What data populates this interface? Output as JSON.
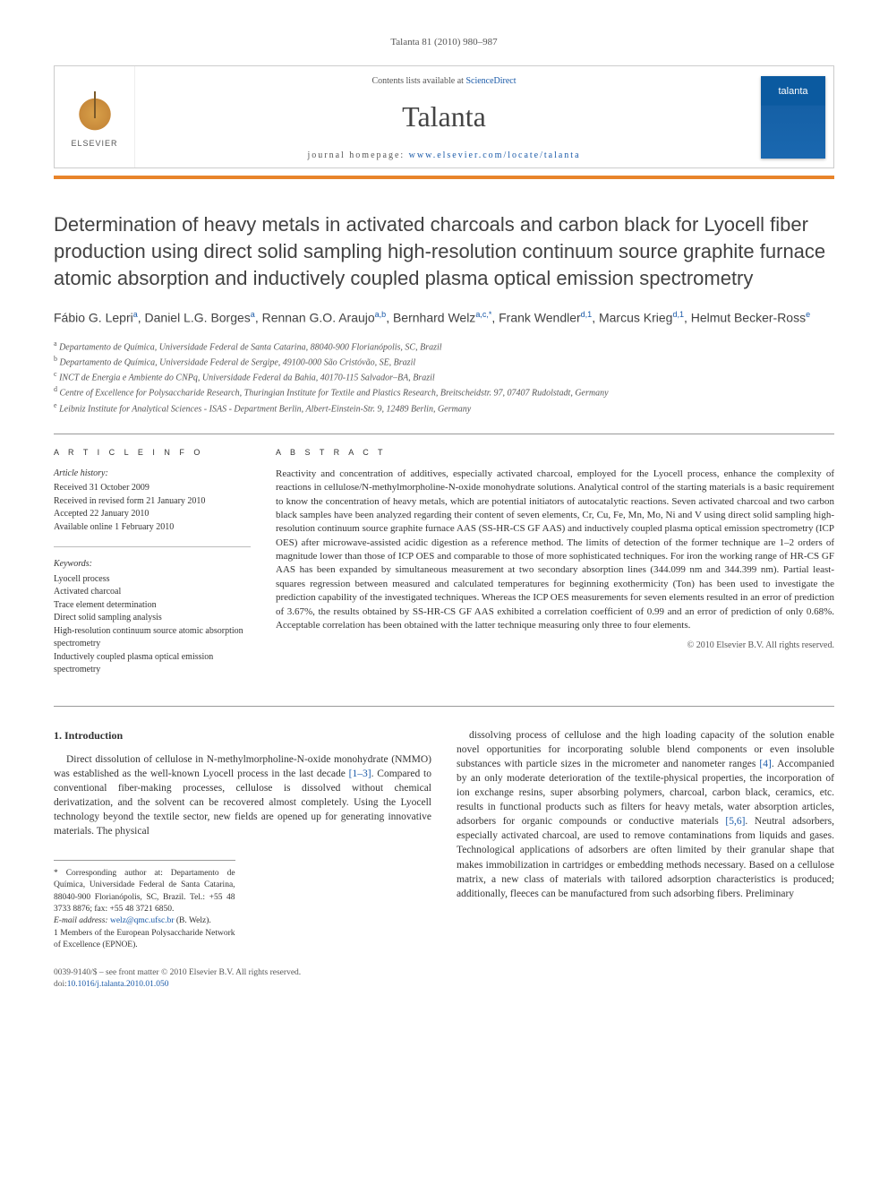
{
  "running_head": "Talanta 81 (2010) 980–987",
  "masthead": {
    "publisher_label": "ELSEVIER",
    "contents_prefix": "Contents lists available at ",
    "contents_link": "ScienceDirect",
    "journal": "Talanta",
    "homepage_prefix": "journal homepage: ",
    "homepage_link": "www.elsevier.com/locate/talanta",
    "cover_label": "talanta"
  },
  "title": "Determination of heavy metals in activated charcoals and carbon black for Lyocell fiber production using direct solid sampling high-resolution continuum source graphite furnace atomic absorption and inductively coupled plasma optical emission spectrometry",
  "authors_html": "Fábio G. Lepri<sup>a</sup>, Daniel L.G. Borges<sup>a</sup>, Rennan G.O. Araujo<sup>a,b</sup>, Bernhard Welz<sup>a,c,*</sup>, Frank Wendler<sup>d,1</sup>, Marcus Krieg<sup>d,1</sup>, Helmut Becker-Ross<sup>e</sup>",
  "affiliations": [
    "a Departamento de Química, Universidade Federal de Santa Catarina, 88040-900 Florianópolis, SC, Brazil",
    "b Departamento de Química, Universidade Federal de Sergipe, 49100-000 São Cristóvão, SE, Brazil",
    "c INCT de Energia e Ambiente do CNPq, Universidade Federal da Bahia, 40170-115 Salvador–BA, Brazil",
    "d Centre of Excellence for Polysaccharide Research, Thuringian Institute for Textile and Plastics Research, Breitscheidstr. 97, 07407 Rudolstadt, Germany",
    "e Leibniz Institute for Analytical Sciences - ISAS - Department Berlin, Albert-Einstein-Str. 9, 12489 Berlin, Germany"
  ],
  "article_info": {
    "label": "A R T I C L E   I N F O",
    "history_hd": "Article history:",
    "history": [
      "Received 31 October 2009",
      "Received in revised form 21 January 2010",
      "Accepted 22 January 2010",
      "Available online 1 February 2010"
    ],
    "keywords_hd": "Keywords:",
    "keywords": [
      "Lyocell process",
      "Activated charcoal",
      "Trace element determination",
      "Direct solid sampling analysis",
      "High-resolution continuum source atomic absorption spectrometry",
      "Inductively coupled plasma optical emission spectrometry"
    ]
  },
  "abstract": {
    "label": "A B S T R A C T",
    "body": "Reactivity and concentration of additives, especially activated charcoal, employed for the Lyocell process, enhance the complexity of reactions in cellulose/N-methylmorpholine-N-oxide monohydrate solutions. Analytical control of the starting materials is a basic requirement to know the concentration of heavy metals, which are potential initiators of autocatalytic reactions. Seven activated charcoal and two carbon black samples have been analyzed regarding their content of seven elements, Cr, Cu, Fe, Mn, Mo, Ni and V using direct solid sampling high-resolution continuum source graphite furnace AAS (SS-HR-CS GF AAS) and inductively coupled plasma optical emission spectrometry (ICP OES) after microwave-assisted acidic digestion as a reference method. The limits of detection of the former technique are 1–2 orders of magnitude lower than those of ICP OES and comparable to those of more sophisticated techniques. For iron the working range of HR-CS GF AAS has been expanded by simultaneous measurement at two secondary absorption lines (344.099 nm and 344.399 nm). Partial least-squares regression between measured and calculated temperatures for beginning exothermicity (Ton) has been used to investigate the prediction capability of the investigated techniques. Whereas the ICP OES measurements for seven elements resulted in an error of prediction of 3.67%, the results obtained by SS-HR-CS GF AAS exhibited a correlation coefficient of 0.99 and an error of prediction of only 0.68%. Acceptable correlation has been obtained with the latter technique measuring only three to four elements.",
    "copyright": "© 2010 Elsevier B.V. All rights reserved."
  },
  "intro": {
    "heading": "1. Introduction",
    "col1": "Direct dissolution of cellulose in N-methylmorpholine-N-oxide monohydrate (NMMO) was established as the well-known Lyocell process in the last decade [1–3]. Compared to conventional fiber-making processes, cellulose is dissolved without chemical derivatization, and the solvent can be recovered almost completely. Using the Lyocell technology beyond the textile sector, new fields are opened up for generating innovative materials. The physical",
    "col2": "dissolving process of cellulose and the high loading capacity of the solution enable novel opportunities for incorporating soluble blend components or even insoluble substances with particle sizes in the micrometer and nanometer ranges [4]. Accompanied by an only moderate deterioration of the textile-physical properties, the incorporation of ion exchange resins, super absorbing polymers, charcoal, carbon black, ceramics, etc. results in functional products such as filters for heavy metals, water absorption articles, adsorbers for organic compounds or conductive materials [5,6]. Neutral adsorbers, especially activated charcoal, are used to remove contaminations from liquids and gases. Technological applications of adsorbers are often limited by their granular shape that makes immobilization in cartridges or embedding methods necessary. Based on a cellulose matrix, a new class of materials with tailored adsorption characteristics is produced; additionally, fleeces can be manufactured from such adsorbing fibers. Preliminary"
  },
  "footnotes": {
    "corr": "* Corresponding author at: Departamento de Química, Universidade Federal de Santa Catarina, 88040-900 Florianópolis, SC, Brazil. Tel.: +55 48 3733 8876; fax: +55 48 3721 6850.",
    "email_label": "E-mail address: ",
    "email": "welz@qmc.ufsc.br",
    "email_paren": " (B. Welz).",
    "note1": "1 Members of the European Polysaccharide Network of Excellence (EPNOE)."
  },
  "footer": {
    "line1": "0039-9140/$ – see front matter © 2010 Elsevier B.V. All rights reserved.",
    "doi_label": "doi:",
    "doi": "10.1016/j.talanta.2010.01.050"
  },
  "colors": {
    "accent_orange": "#e8842a",
    "link_blue": "#1a5aa8",
    "cover_blue": "#0b5aa0",
    "text": "#333333"
  },
  "refs": {
    "r1": "[1–3]",
    "r4": "[4]",
    "r56": "[5,6]"
  }
}
